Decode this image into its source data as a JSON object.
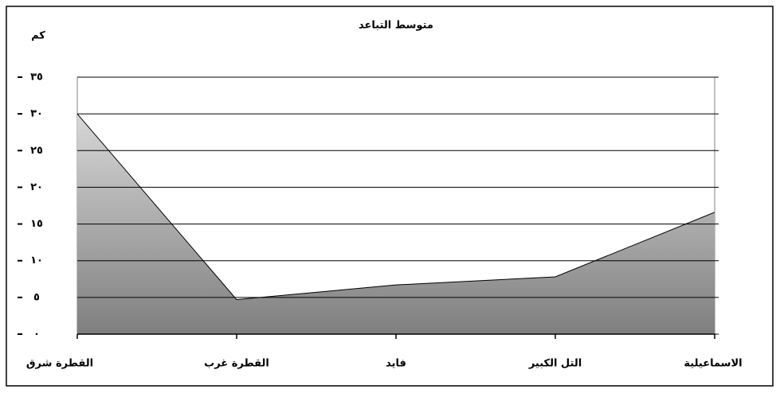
{
  "chart_data": {
    "type": "area",
    "title": "متوسط التباعد",
    "y_label": "كم",
    "categories": [
      "القطرة شرق",
      "القطرة غرب",
      "فايد",
      "التل الكبير",
      "الاسماعيلية"
    ],
    "values": [
      30,
      4.7,
      6.7,
      7.8,
      16.6
    ],
    "color": "#8c8c8c",
    "ylim": [
      0,
      35
    ],
    "yticks": [
      {
        "value": 0,
        "label": "٠"
      },
      {
        "value": 5,
        "label": "٥"
      },
      {
        "value": 10,
        "label": "١٠"
      },
      {
        "value": 15,
        "label": "١٥"
      },
      {
        "value": 20,
        "label": "٢٠"
      },
      {
        "value": 25,
        "label": "٢٥"
      },
      {
        "value": 30,
        "label": "٣٠"
      },
      {
        "value": 35,
        "label": "٣٥"
      }
    ],
    "grid": true
  }
}
